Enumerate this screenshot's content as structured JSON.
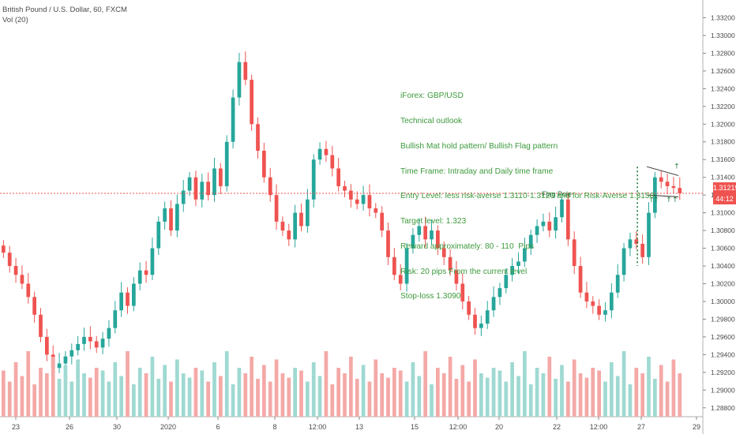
{
  "header": {
    "symbol_line": "British Pound / U.S. Dollar, 60, FXCM",
    "volume_line": "Vol (20)"
  },
  "note_lines": [
    "iForex: GBP/USD",
    "Technical outlook",
    "Bullish Mat hold pattern/ Bullish Flag pattern",
    "Time Frame: Intraday and Daily time frame",
    "Entry Level: less risk-averse 1.3110-1.3120 and for Risk-Averse 1.3150.",
    "Target level: 1.323",
    "Reward approximately: 80 - 110  Pips",
    "Risk: 20 pips From the current level",
    "Stop-loss 1.3090"
  ],
  "flag_pole_label": "Flag Pole",
  "current_price": "1.31219",
  "countdown": "44:12",
  "colors": {
    "up": "#26a69a",
    "down": "#ef5350",
    "vol_up": "#9fd9d2",
    "vol_down": "#f4a9a7",
    "annotation": "#1f7a3a",
    "price_line": "#ef5350",
    "axis_text": "#4a4a4a"
  },
  "chart_data": {
    "type": "candlestick",
    "title": "British Pound / U.S. Dollar, 60, FXCM",
    "y_axis": {
      "side": "right",
      "range": [
        1.287,
        1.334
      ],
      "ticks": [
        "1.32400",
        "1.32200",
        "1.32000",
        "1.31800",
        "1.31600",
        "1.31400",
        "1.31200",
        "1.31000",
        "1.30800",
        "1.30600",
        "1.30400",
        "1.30200",
        "1.30000",
        "1.29800",
        "1.29600",
        "1.29400",
        "1.29200",
        "1.29000",
        "1.28800",
        "1.33200",
        "1.33000",
        "1.32800",
        "1.32600"
      ],
      "tick_values": [
        1.324,
        1.322,
        1.32,
        1.318,
        1.316,
        1.314,
        1.312,
        1.31,
        1.308,
        1.306,
        1.304,
        1.302,
        1.3,
        1.298,
        1.296,
        1.294,
        1.292,
        1.29,
        1.288,
        1.332,
        1.33,
        1.328,
        1.326
      ]
    },
    "x_axis": {
      "range": [
        0,
        880
      ],
      "labels": [
        "23",
        "26",
        "30",
        "2020",
        "6",
        "8",
        "12:00",
        "13",
        "15",
        "12:00",
        "20",
        "22",
        "12:00",
        "27",
        "29"
      ],
      "label_positions": [
        20,
        88,
        148,
        213,
        276,
        348,
        402,
        455,
        525,
        580,
        632,
        705,
        758,
        812,
        882
      ]
    },
    "closes": [
      1.3055,
      1.304,
      1.303,
      1.302,
      1.3005,
      1.2985,
      1.296,
      1.294,
      1.2925,
      1.293,
      1.2938,
      1.2945,
      1.2952,
      1.296,
      1.2955,
      1.2948,
      1.2958,
      1.297,
      1.299,
      1.301,
      1.2995,
      1.302,
      1.3035,
      1.303,
      1.306,
      1.309,
      1.3105,
      1.308,
      1.311,
      1.3125,
      1.314,
      1.3115,
      1.3135,
      1.312,
      1.315,
      1.313,
      1.318,
      1.323,
      1.327,
      1.325,
      1.32,
      1.317,
      1.314,
      1.312,
      1.309,
      1.308,
      1.307,
      1.31,
      1.3085,
      1.3115,
      1.316,
      1.3172,
      1.3165,
      1.315,
      1.313,
      1.3125,
      1.3115,
      1.311,
      1.312,
      1.3105,
      1.31,
      1.308,
      1.305,
      1.303,
      1.302,
      1.306,
      1.3075,
      1.3085,
      1.307,
      1.308,
      1.306,
      1.305,
      1.3035,
      1.302,
      1.3,
      1.2985,
      1.297,
      1.2975,
      1.299,
      1.3005,
      1.3015,
      1.303,
      1.304,
      1.3045,
      1.306,
      1.3075,
      1.3085,
      1.309,
      1.308,
      1.3095,
      1.3115,
      1.307,
      1.304,
      1.301,
      1.3,
      1.2995,
      1.2985,
      1.299,
      1.301,
      1.303,
      1.306,
      1.307,
      1.3065,
      1.305,
      1.31,
      1.314,
      1.3135,
      1.313,
      1.3128,
      1.3122
    ]
  }
}
